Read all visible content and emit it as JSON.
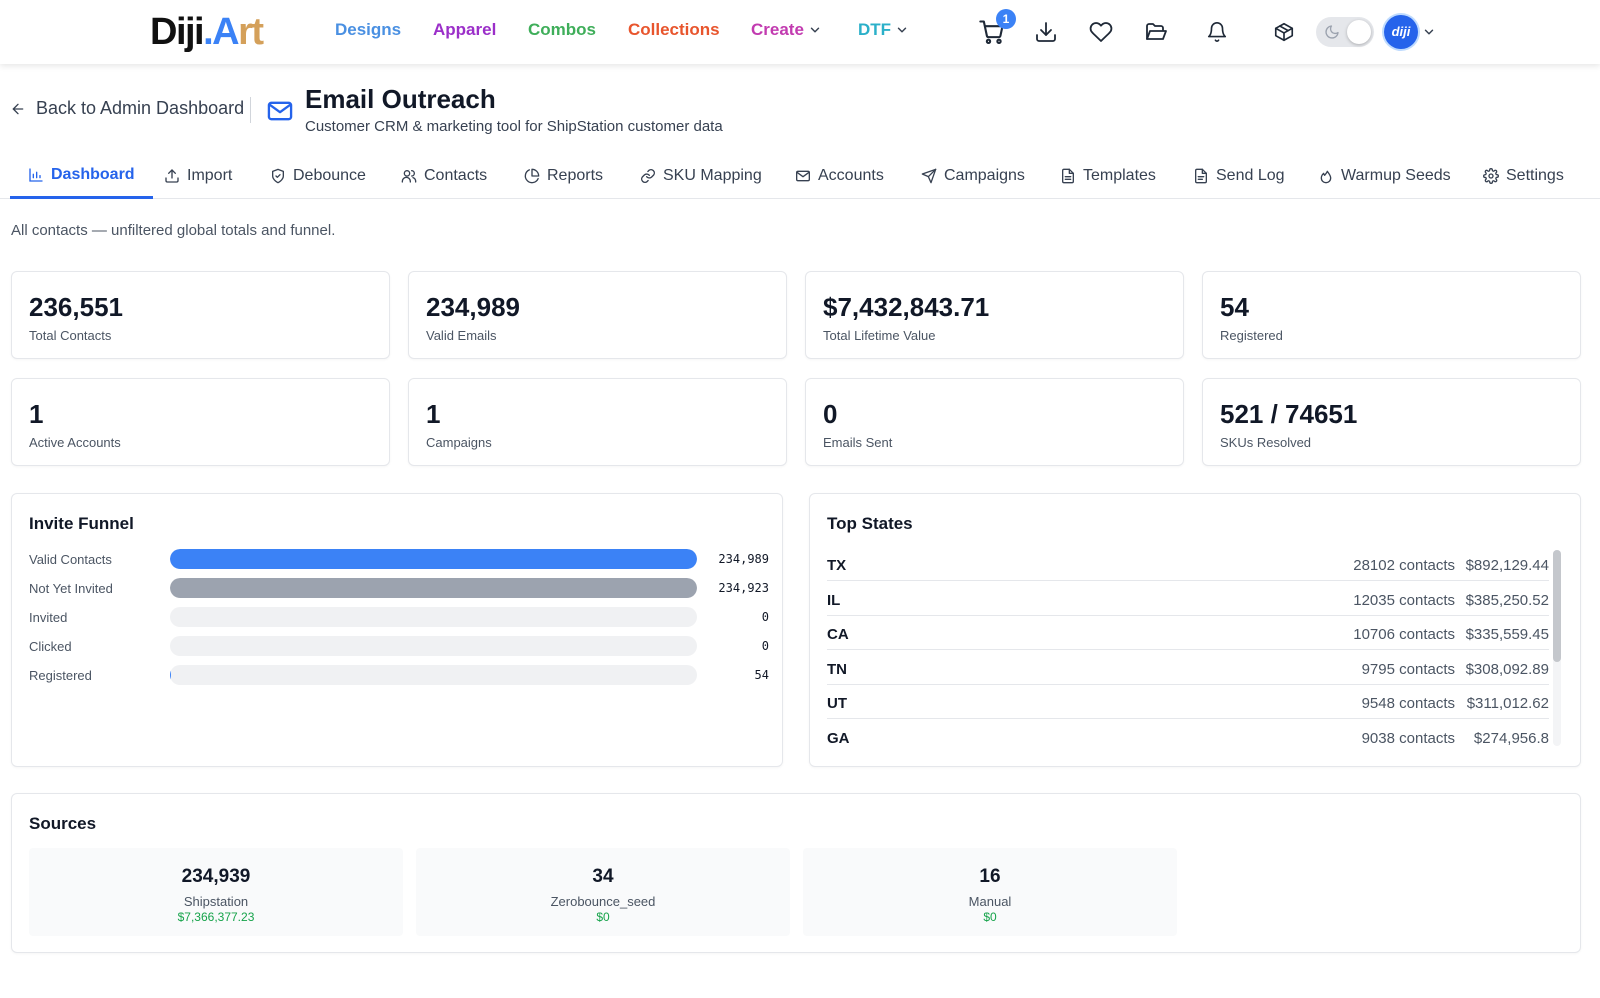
{
  "brand": {
    "part1": "Diji",
    "part2": ".A",
    "part3": "rt"
  },
  "nav": {
    "designs": "Designs",
    "apparel": "Apparel",
    "combos": "Combos",
    "collections": "Collections",
    "create": "Create",
    "dtf": "DTF",
    "cart_count": "1",
    "avatar_text": "diji"
  },
  "colors": {
    "designs": "#4a90e2",
    "apparel": "#9b2fc9",
    "combos": "#3fae5a",
    "collections": "#e8552d",
    "create": "#c23bb0",
    "dtf": "#2bb0c9",
    "accent": "#2563eb",
    "money": "#16a34a"
  },
  "header": {
    "back": "Back to Admin Dashboard",
    "title": "Email Outreach",
    "subtitle": "Customer CRM & marketing tool for ShipStation customer data"
  },
  "tabs": [
    {
      "label": "Dashboard",
      "icon": "bar-chart-icon"
    },
    {
      "label": "Import",
      "icon": "upload-icon"
    },
    {
      "label": "Debounce",
      "icon": "shield-icon"
    },
    {
      "label": "Contacts",
      "icon": "users-icon"
    },
    {
      "label": "Reports",
      "icon": "pie-chart-icon"
    },
    {
      "label": "SKU Mapping",
      "icon": "link-icon"
    },
    {
      "label": "Accounts",
      "icon": "mail-icon"
    },
    {
      "label": "Campaigns",
      "icon": "send-icon"
    },
    {
      "label": "Templates",
      "icon": "file-icon"
    },
    {
      "label": "Send Log",
      "icon": "file-text-icon"
    },
    {
      "label": "Warmup Seeds",
      "icon": "flame-icon"
    },
    {
      "label": "Settings",
      "icon": "gear-icon"
    }
  ],
  "note": "All contacts — unfiltered global totals and funnel.",
  "stats": [
    {
      "value": "236,551",
      "label": "Total Contacts"
    },
    {
      "value": "234,989",
      "label": "Valid Emails"
    },
    {
      "value": "$7,432,843.71",
      "label": "Total Lifetime Value"
    },
    {
      "value": "54",
      "label": "Registered"
    },
    {
      "value": "1",
      "label": "Active Accounts"
    },
    {
      "value": "1",
      "label": "Campaigns"
    },
    {
      "value": "0",
      "label": "Emails Sent"
    },
    {
      "value": "521 / 74651",
      "label": "SKUs Resolved"
    }
  ],
  "funnel": {
    "title": "Invite Funnel",
    "rows": [
      {
        "label": "Valid Contacts",
        "count": "234,989",
        "value": 234989,
        "color": "#3b82f6"
      },
      {
        "label": "Not Yet Invited",
        "count": "234,923",
        "value": 234923,
        "color": "#9ca3af"
      },
      {
        "label": "Invited",
        "count": "0",
        "value": 0,
        "color": "#3b82f6"
      },
      {
        "label": "Clicked",
        "count": "0",
        "value": 0,
        "color": "#3b82f6"
      },
      {
        "label": "Registered",
        "count": "54",
        "value": 54,
        "color": "#3b82f6"
      }
    ]
  },
  "states": {
    "title": "Top States",
    "rows": [
      {
        "code": "TX",
        "contacts": "28102 contacts",
        "value": "$892,129.44"
      },
      {
        "code": "IL",
        "contacts": "12035 contacts",
        "value": "$385,250.52"
      },
      {
        "code": "CA",
        "contacts": "10706 contacts",
        "value": "$335,559.45"
      },
      {
        "code": "TN",
        "contacts": "9795 contacts",
        "value": "$308,092.89"
      },
      {
        "code": "UT",
        "contacts": "9548 contacts",
        "value": "$311,012.62"
      },
      {
        "code": "GA",
        "contacts": "9038 contacts",
        "value": "$274,956.8"
      }
    ]
  },
  "sources": {
    "title": "Sources",
    "items": [
      {
        "count": "234,939",
        "name": "Shipstation",
        "value": "$7,366,377.23"
      },
      {
        "count": "34",
        "name": "Zerobounce_seed",
        "value": "$0"
      },
      {
        "count": "16",
        "name": "Manual",
        "value": "$0"
      }
    ]
  }
}
